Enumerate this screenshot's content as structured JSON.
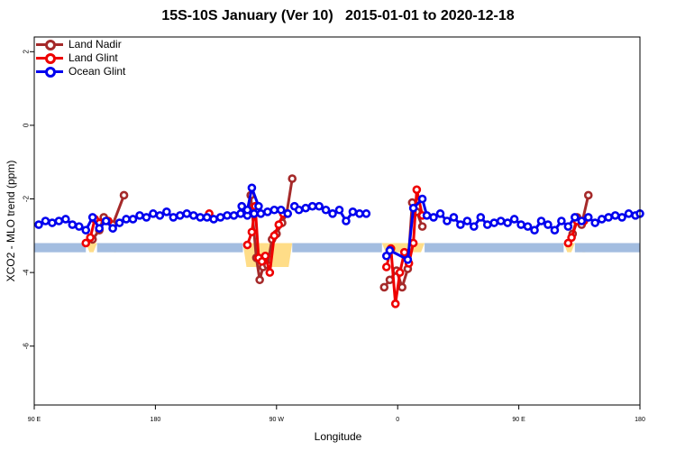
{
  "chart_data": {
    "type": "line",
    "title": "15S-10S January (Ver 10)   2015-01-01 to 2020-12-18",
    "xlabel": "Longitude",
    "ylabel": "XCO2 - MLO trend (ppm)",
    "xlim": [
      -90,
      180
    ],
    "ylim": [
      -7.6,
      2.4
    ],
    "x_ticks": [
      {
        "value": -90,
        "label": "90 E"
      },
      {
        "value": -36,
        "label": "180"
      },
      {
        "value": 18,
        "label": "90 W"
      },
      {
        "value": 72,
        "label": "0"
      },
      {
        "value": 126,
        "label": "90 E"
      },
      {
        "value": 180,
        "label": "180"
      }
    ],
    "y_ticks": [
      {
        "value": 2,
        "label": "2"
      },
      {
        "value": 0,
        "label": "0"
      },
      {
        "value": -2,
        "label": "-2"
      },
      {
        "value": -4,
        "label": "-4"
      },
      {
        "value": -6,
        "label": "-6"
      }
    ],
    "grid": false,
    "legend_position": "top-left",
    "land_band": {
      "color": "#a3bde0",
      "y_range": [
        -3.45,
        -3.2
      ]
    },
    "land_mask": {
      "color": "#ffdd88"
    },
    "series": [
      {
        "name": "Land Nadir",
        "color": "#a52a2a",
        "segments": [
          {
            "x": [
              -64,
              -61,
              -59,
              -55,
              -50
            ],
            "y": [
              -3.1,
              -2.85,
              -2.5,
              -2.7,
              -1.9
            ]
          },
          {
            "x": [
              5.5,
              6.5,
              9,
              10.5,
              12,
              14,
              16,
              18,
              20.5,
              22.5,
              25
            ],
            "y": [
              -2.3,
              -1.9,
              -3.6,
              -4.2,
              -3.85,
              -3.8,
              -3.1,
              -2.95,
              -2.65,
              -2.4,
              -1.45
            ]
          },
          {
            "x": [
              66,
              68.5,
              71.5,
              74,
              76.5,
              78.5,
              80.5,
              83
            ],
            "y": [
              -4.4,
              -4.2,
              -3.95,
              -4.4,
              -3.9,
              -2.1,
              -2.35,
              -2.75
            ]
          },
          {
            "x": [
              150,
              152,
              154,
              157
            ],
            "y": [
              -2.95,
              -2.5,
              -2.7,
              -1.9
            ]
          }
        ]
      },
      {
        "name": "Land Glint",
        "color": "#ee0000",
        "segments": [
          {
            "x": [
              -67,
              -65,
              -63,
              -57
            ],
            "y": [
              -3.2,
              -3.05,
              -2.55,
              -2.6
            ]
          },
          {
            "x": [
              -12
            ],
            "y": [
              -2.4
            ]
          },
          {
            "x": [
              5,
              7,
              8.5,
              10,
              11.5,
              13,
              15,
              17,
              19,
              21
            ],
            "y": [
              -3.25,
              -2.9,
              -2.2,
              -3.6,
              -3.7,
              -3.55,
              -4.0,
              -3.0,
              -2.7,
              -2.4
            ]
          },
          {
            "x": [
              67,
              69,
              71,
              73,
              75,
              77,
              79,
              80.5,
              83
            ],
            "y": [
              -3.85,
              -3.35,
              -4.85,
              -4.0,
              -3.45,
              -3.75,
              -3.2,
              -1.75,
              -2.45
            ]
          },
          {
            "x": [
              148,
              149.5,
              152,
              155
            ],
            "y": [
              -3.2,
              -3.05,
              -2.6,
              -2.6
            ]
          }
        ]
      },
      {
        "name": "Ocean Glint",
        "color": "#0000ee",
        "segments": [
          {
            "x": [
              -88,
              -85,
              -82,
              -79,
              -76,
              -73,
              -70,
              -67,
              -64,
              -61,
              -58,
              -55,
              -52,
              -49,
              -46,
              -43,
              -40,
              -37,
              -34,
              -31,
              -28,
              -25,
              -22,
              -19,
              -16,
              -13,
              -10,
              -7,
              -4,
              -1,
              2,
              5,
              8,
              11,
              14,
              17,
              20,
              23
            ],
            "y": [
              -2.7,
              -2.6,
              -2.65,
              -2.6,
              -2.55,
              -2.7,
              -2.75,
              -2.85,
              -2.5,
              -2.8,
              -2.6,
              -2.8,
              -2.65,
              -2.55,
              -2.55,
              -2.45,
              -2.5,
              -2.4,
              -2.45,
              -2.35,
              -2.5,
              -2.45,
              -2.4,
              -2.45,
              -2.5,
              -2.5,
              -2.55,
              -2.5,
              -2.45,
              -2.45,
              -2.4,
              -2.45,
              -2.4,
              -2.4,
              -2.35,
              -2.3,
              -2.3,
              -2.4
            ]
          },
          {
            "x": [
              2.5,
              5,
              7,
              10
            ],
            "y": [
              -2.2,
              -2.3,
              -1.7,
              -2.2
            ]
          },
          {
            "x": [
              26,
              28,
              31,
              34,
              37,
              40,
              43,
              46,
              49,
              52,
              55,
              58
            ],
            "y": [
              -2.2,
              -2.3,
              -2.25,
              -2.2,
              -2.2,
              -2.3,
              -2.4,
              -2.3,
              -2.6,
              -2.35,
              -2.4,
              -2.4
            ]
          },
          {
            "x": [
              67,
              68.5,
              76.5,
              79,
              83,
              85,
              88,
              91,
              94,
              97,
              100,
              103,
              106,
              109,
              112,
              115,
              118,
              121,
              124,
              127,
              130,
              133,
              136,
              139,
              142,
              145,
              148,
              151,
              154,
              157,
              160,
              163,
              166,
              169,
              172,
              175,
              178,
              180
            ],
            "y": [
              -3.55,
              -3.4,
              -3.65,
              -2.25,
              -2.0,
              -2.45,
              -2.5,
              -2.4,
              -2.6,
              -2.5,
              -2.7,
              -2.6,
              -2.75,
              -2.5,
              -2.7,
              -2.65,
              -2.6,
              -2.65,
              -2.55,
              -2.7,
              -2.75,
              -2.85,
              -2.6,
              -2.7,
              -2.85,
              -2.6,
              -2.75,
              -2.5,
              -2.6,
              -2.5,
              -2.65,
              -2.55,
              -2.5,
              -2.45,
              -2.5,
              -2.4,
              -2.45,
              -2.4
            ]
          }
        ]
      }
    ]
  }
}
